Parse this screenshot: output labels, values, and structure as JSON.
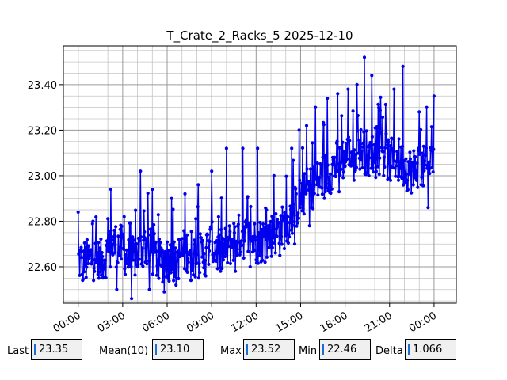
{
  "chart_data": {
    "type": "line",
    "title": "T_Crate_2_Racks_5 2025-12-10",
    "xlabel": "",
    "ylabel": "",
    "x_tick_labels": [
      "00:00",
      "03:00",
      "06:00",
      "09:00",
      "12:00",
      "15:00",
      "18:00",
      "21:00",
      "00:00"
    ],
    "y_tick_labels": [
      "22.60",
      "22.80",
      "23.00",
      "23.20",
      "23.40"
    ],
    "y_ticks": [
      22.6,
      22.8,
      23.0,
      23.2,
      23.4
    ],
    "xlim_hours": [
      -1.0,
      25.5
    ],
    "ylim": [
      22.44,
      23.57
    ],
    "grid": true,
    "series_color": "#0000ee",
    "series": [
      {
        "name": "",
        "x_hours": [
          0.0,
          0.5,
          1.0,
          1.5,
          2.0,
          2.5,
          3.0,
          3.5,
          4.0,
          4.5,
          5.0,
          5.5,
          6.0,
          6.5,
          7.0,
          7.5,
          8.0,
          8.5,
          9.0,
          9.5,
          10.0,
          10.5,
          11.0,
          11.5,
          12.0,
          12.5,
          13.0,
          13.5,
          14.0,
          14.5,
          15.0,
          15.5,
          16.0,
          16.5,
          17.0,
          17.5,
          18.0,
          18.5,
          19.0,
          19.5,
          20.0,
          20.5,
          21.0,
          21.5,
          22.0,
          22.5,
          23.0,
          23.5,
          24.0
        ],
        "values": [
          22.63,
          22.62,
          22.64,
          22.62,
          22.66,
          22.7,
          22.68,
          22.62,
          22.66,
          22.7,
          22.66,
          22.62,
          22.64,
          22.62,
          22.66,
          22.68,
          22.64,
          22.66,
          22.7,
          22.66,
          22.68,
          22.72,
          22.74,
          22.72,
          22.71,
          22.72,
          22.74,
          22.76,
          22.78,
          22.84,
          22.9,
          22.94,
          22.96,
          23.0,
          23.02,
          23.06,
          23.08,
          23.1,
          23.12,
          23.1,
          23.08,
          23.12,
          23.06,
          23.08,
          23.04,
          23.02,
          23.05,
          23.02,
          23.1
        ],
        "peak_x_hours": [
          0.0,
          1.0,
          2.2,
          3.1,
          4.2,
          5.0,
          6.3,
          7.2,
          8.1,
          9.0,
          10.0,
          11.1,
          12.1,
          13.2,
          14.4,
          14.9,
          15.4,
          16.0,
          16.8,
          17.5,
          18.2,
          18.8,
          19.3,
          19.8,
          20.6,
          21.3,
          21.9,
          22.6,
          23.0,
          23.5,
          24.0
        ],
        "peak_values": [
          22.84,
          22.8,
          22.94,
          22.82,
          23.02,
          22.94,
          22.9,
          22.92,
          22.96,
          23.02,
          23.12,
          23.12,
          23.12,
          23.0,
          23.12,
          23.2,
          23.22,
          23.3,
          23.34,
          23.36,
          23.38,
          23.4,
          23.52,
          23.44,
          23.4,
          23.38,
          23.48,
          23.36,
          23.28,
          23.3,
          23.37
        ],
        "dip_x_hours": [
          0.3,
          1.4,
          2.6,
          3.6,
          4.8,
          5.8,
          6.6,
          7.6,
          8.6,
          9.6,
          10.6,
          11.6,
          12.6,
          13.6,
          14.6,
          15.6,
          16.6,
          17.6,
          18.6,
          19.6,
          20.6,
          21.6,
          22.6,
          23.6
        ],
        "dip_values": [
          22.54,
          22.55,
          22.5,
          22.46,
          22.5,
          22.49,
          22.52,
          22.54,
          22.56,
          22.58,
          22.58,
          22.6,
          22.62,
          22.65,
          22.7,
          22.78,
          22.9,
          22.93,
          22.98,
          23.0,
          23.0,
          22.98,
          22.96,
          22.86
        ]
      }
    ]
  },
  "stats": {
    "last_label": "Last",
    "last_value": "23.35",
    "mean_label": "Mean(10)",
    "mean_value": "23.10",
    "max_label": "Max",
    "max_value": "23.52",
    "min_label": "Min",
    "min_value": "22.46",
    "delta_label": "Delta",
    "delta_value": "1.066"
  }
}
